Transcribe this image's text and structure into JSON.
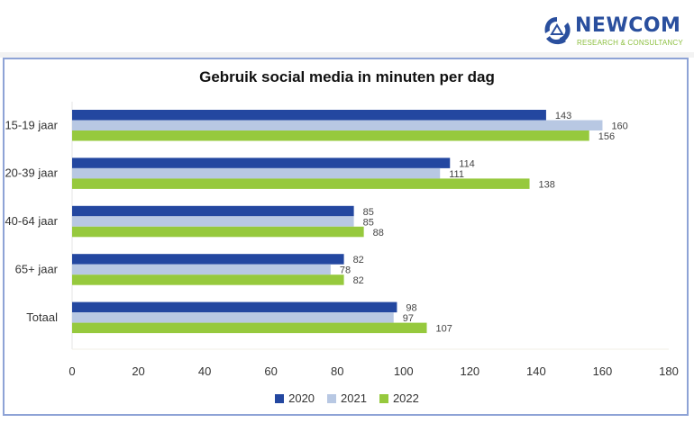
{
  "brand": {
    "name": "NEWCOM",
    "tagline": "RESEARCH & CONSULTANCY",
    "colors": {
      "name": "#2a4f9e",
      "tagline": "#8cbf3f"
    }
  },
  "chart_data": {
    "type": "bar",
    "orientation": "horizontal",
    "title": "Gebruik social media in minuten per dag",
    "xlabel": "",
    "ylabel": "",
    "categories": [
      "15-19 jaar",
      "20-39 jaar",
      "40-64 jaar",
      "65+ jaar",
      "Totaal"
    ],
    "series": [
      {
        "name": "2020",
        "color": "#2347a0",
        "values": [
          143,
          114,
          85,
          82,
          98
        ]
      },
      {
        "name": "2021",
        "color": "#b8c8e3",
        "values": [
          160,
          111,
          85,
          78,
          97
        ]
      },
      {
        "name": "2022",
        "color": "#96c93d",
        "values": [
          156,
          138,
          88,
          82,
          107
        ]
      }
    ],
    "xlim": [
      0,
      180
    ],
    "xticks": [
      0,
      20,
      40,
      60,
      80,
      100,
      120,
      140,
      160,
      180
    ],
    "grid": false,
    "legend": "bottom-center",
    "data_labels": true
  }
}
